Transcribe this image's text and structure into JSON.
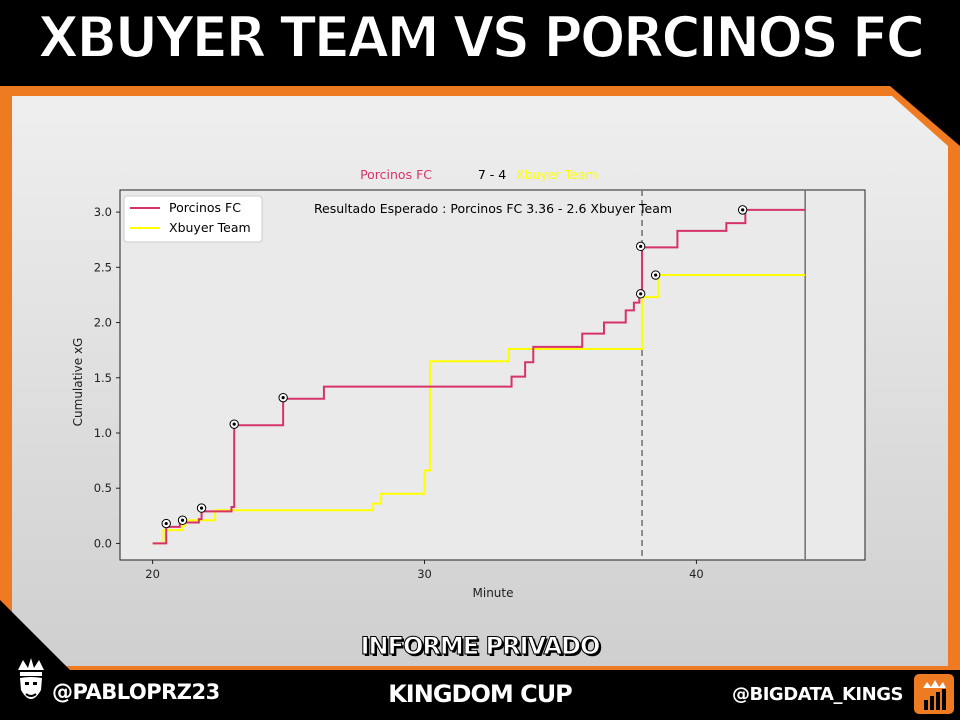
{
  "header": {
    "title": "XBUYER TEAM VS PORCINOS FC"
  },
  "footer": {
    "subtitle": "INFORME PRIVADO",
    "left_handle": "@PABLOPRZ23",
    "center_title": "KINGDOM CUP",
    "right_handle": "@BIGDATA_KINGS"
  },
  "colors": {
    "porcinos": "#d6336b",
    "xbuyer": "#ffff00",
    "accent": "#ee7a22"
  },
  "chart_data": {
    "type": "line",
    "title_home": "Porcinos FC",
    "title_score": "7 - 4",
    "title_away": "Xbuyer Team",
    "annotation": "Resultado Esperado : Porcinos FC  3.36 - 2.6 Xbuyer Team",
    "xlabel": "Minute",
    "ylabel": "Cumulative xG",
    "xlim": [
      18.8,
      46.2
    ],
    "ylim": [
      -0.15,
      3.2
    ],
    "xticks": [
      20,
      30,
      40
    ],
    "yticks": [
      0.0,
      0.5,
      1.0,
      1.5,
      2.0,
      2.5,
      3.0
    ],
    "vlines": [
      {
        "x": 38.0,
        "style": "dashed"
      },
      {
        "x": 44.0,
        "style": "solid"
      }
    ],
    "legend": {
      "position": "top-left",
      "entries": [
        "Porcinos FC",
        "Xbuyer Team"
      ]
    },
    "series": [
      {
        "name": "Porcinos FC",
        "color": "#d6336b",
        "steps": [
          [
            20.0,
            0.0
          ],
          [
            20.5,
            0.15
          ],
          [
            21.0,
            0.19
          ],
          [
            21.7,
            0.22
          ],
          [
            21.8,
            0.29
          ],
          [
            22.9,
            0.33
          ],
          [
            23.0,
            1.07
          ],
          [
            24.8,
            1.07
          ],
          [
            24.8,
            1.31
          ],
          [
            26.3,
            1.42
          ],
          [
            33.2,
            1.51
          ],
          [
            33.7,
            1.64
          ],
          [
            34.0,
            1.78
          ],
          [
            35.8,
            1.9
          ],
          [
            36.6,
            2.0
          ],
          [
            37.4,
            2.11
          ],
          [
            37.7,
            2.18
          ],
          [
            37.9,
            2.24
          ],
          [
            38.0,
            2.68
          ],
          [
            39.3,
            2.83
          ],
          [
            41.1,
            2.9
          ],
          [
            41.8,
            3.02
          ],
          [
            44.0,
            3.02
          ]
        ],
        "goals": [
          [
            20.5,
            0.18
          ],
          [
            21.1,
            0.21
          ],
          [
            21.8,
            0.32
          ],
          [
            23.0,
            1.08
          ],
          [
            24.8,
            1.32
          ],
          [
            37.95,
            2.26
          ],
          [
            37.95,
            2.69
          ],
          [
            41.7,
            3.02
          ]
        ]
      },
      {
        "name": "Xbuyer Team",
        "color": "#ffff00",
        "steps": [
          [
            20.0,
            0.0
          ],
          [
            20.4,
            0.12
          ],
          [
            21.1,
            0.16
          ],
          [
            21.2,
            0.21
          ],
          [
            21.8,
            0.21
          ],
          [
            22.3,
            0.3
          ],
          [
            28.1,
            0.36
          ],
          [
            28.4,
            0.45
          ],
          [
            30.0,
            0.66
          ],
          [
            30.2,
            1.65
          ],
          [
            33.1,
            1.76
          ],
          [
            38.0,
            2.23
          ],
          [
            38.6,
            2.43
          ],
          [
            44.0,
            2.43
          ]
        ],
        "goals": [
          [
            38.5,
            2.43
          ]
        ]
      }
    ]
  }
}
